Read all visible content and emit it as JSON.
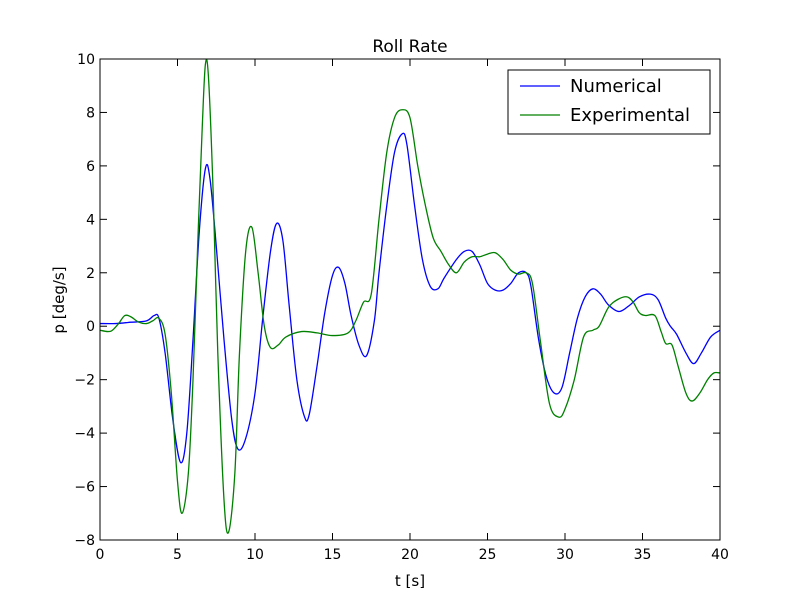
{
  "chart_data": {
    "type": "line",
    "title": "Roll Rate",
    "xlabel": "t [s]",
    "ylabel": "p [deg/s]",
    "xlim": [
      0,
      40
    ],
    "ylim": [
      -8,
      10
    ],
    "xticks": [
      0,
      5,
      10,
      15,
      20,
      25,
      30,
      35,
      40
    ],
    "yticks": [
      -8,
      -6,
      -4,
      -2,
      0,
      2,
      4,
      6,
      8,
      10
    ],
    "grid": false,
    "legend_position": "top-right",
    "series": [
      {
        "name": "Numerical",
        "color": "#0000ff",
        "x": [
          0,
          1,
          2,
          3,
          3.5,
          3.8,
          4.2,
          4.7,
          5.2,
          5.6,
          6.0,
          6.4,
          6.8,
          7.1,
          7.5,
          8.0,
          8.5,
          8.9,
          9.4,
          10.0,
          10.5,
          11.0,
          11.4,
          11.8,
          12.2,
          12.7,
          13.2,
          13.5,
          14.0,
          14.5,
          15.0,
          15.4,
          15.8,
          16.2,
          16.7,
          17.2,
          17.7,
          18.0,
          18.5,
          19.0,
          19.5,
          19.8,
          20.3,
          20.8,
          21.3,
          21.8,
          22.2,
          23.0,
          23.5,
          24.0,
          24.5,
          25.0,
          25.5,
          26.0,
          26.5,
          27.0,
          27.5,
          27.8,
          28.3,
          28.8,
          29.3,
          29.8,
          30.3,
          30.8,
          31.3,
          31.8,
          32.3,
          32.8,
          33.5,
          34.2,
          34.8,
          35.5,
          36.0,
          36.5,
          36.8,
          37.2,
          37.8,
          38.3,
          38.8,
          39.4,
          40.0
        ],
        "y": [
          0.1,
          0.1,
          0.15,
          0.2,
          0.4,
          0.3,
          -1.0,
          -3.5,
          -5.1,
          -4.0,
          -0.5,
          3.5,
          5.9,
          5.5,
          3.0,
          -0.5,
          -3.5,
          -4.6,
          -4.2,
          -2.5,
          0.3,
          2.8,
          3.85,
          3.2,
          0.8,
          -2.0,
          -3.4,
          -3.3,
          -1.5,
          0.5,
          1.9,
          2.2,
          1.6,
          0.4,
          -0.7,
          -1.1,
          0.2,
          2.0,
          4.5,
          6.5,
          7.2,
          6.8,
          4.5,
          2.5,
          1.5,
          1.4,
          1.8,
          2.5,
          2.8,
          2.8,
          2.3,
          1.6,
          1.35,
          1.35,
          1.6,
          2.0,
          2.0,
          1.5,
          -0.5,
          -1.9,
          -2.5,
          -2.3,
          -1.0,
          0.3,
          1.1,
          1.4,
          1.2,
          0.8,
          0.55,
          0.8,
          1.1,
          1.2,
          1.0,
          0.3,
          0.0,
          -0.3,
          -1.0,
          -1.4,
          -1.0,
          -0.4,
          -0.15
        ]
      },
      {
        "name": "Experimental",
        "color": "#008000",
        "x": [
          0,
          0.5,
          0.8,
          1.2,
          1.6,
          2.0,
          2.5,
          3.0,
          3.4,
          3.8,
          4.2,
          4.6,
          5.0,
          5.3,
          5.7,
          6.0,
          6.3,
          6.6,
          6.8,
          7.0,
          7.3,
          7.6,
          8.0,
          8.3,
          8.7,
          9.0,
          9.4,
          9.8,
          10.2,
          10.6,
          11.0,
          11.5,
          12.0,
          13.0,
          14.0,
          15.0,
          16.0,
          16.5,
          17.0,
          17.5,
          18.0,
          18.5,
          19.0,
          19.5,
          20.0,
          20.5,
          21.0,
          21.5,
          22.0,
          22.5,
          23.0,
          23.5,
          24.0,
          24.5,
          25.0,
          25.5,
          26.0,
          26.5,
          27.0,
          27.5,
          27.9,
          28.4,
          29.0,
          29.6,
          30.0,
          30.6,
          31.2,
          31.8,
          32.2,
          32.8,
          33.4,
          34.0,
          34.4,
          34.8,
          35.2,
          35.8,
          36.2,
          36.5,
          36.9,
          37.3,
          37.8,
          38.2,
          38.7,
          39.2,
          39.6,
          40.0
        ],
        "y": [
          -0.15,
          -0.2,
          -0.15,
          0.1,
          0.4,
          0.35,
          0.15,
          0.1,
          0.2,
          0.3,
          -0.3,
          -2.5,
          -5.8,
          -7.0,
          -5.5,
          -2.0,
          3.0,
          7.5,
          9.8,
          9.3,
          5.0,
          -1.0,
          -6.5,
          -7.7,
          -5.5,
          -1.0,
          2.8,
          3.7,
          2.0,
          0.0,
          -0.8,
          -0.7,
          -0.4,
          -0.2,
          -0.25,
          -0.35,
          -0.25,
          0.2,
          0.9,
          1.2,
          4.0,
          6.5,
          7.8,
          8.1,
          7.8,
          6.0,
          4.5,
          3.3,
          2.8,
          2.3,
          2.0,
          2.4,
          2.6,
          2.6,
          2.7,
          2.75,
          2.5,
          2.1,
          1.95,
          2.0,
          1.6,
          -0.5,
          -2.9,
          -3.4,
          -3.1,
          -2.0,
          -0.4,
          -0.15,
          0.0,
          0.7,
          1.0,
          1.1,
          0.9,
          0.5,
          0.4,
          0.4,
          -0.2,
          -0.65,
          -0.7,
          -1.5,
          -2.5,
          -2.8,
          -2.5,
          -2.0,
          -1.75,
          -1.75
        ]
      }
    ]
  }
}
